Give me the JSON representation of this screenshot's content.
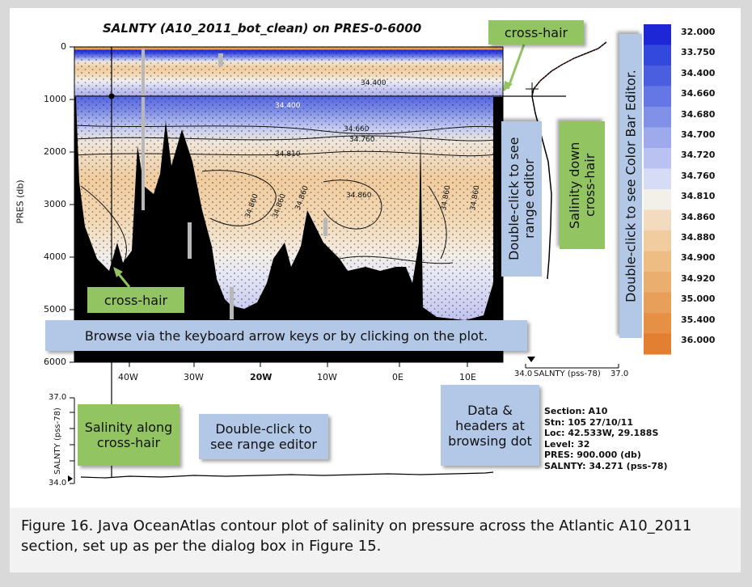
{
  "plot": {
    "title": "SALNTY (A10_2011_bot_clean) on PRES-0-6000",
    "y_axis_label": "PRES (db)",
    "y_ticks": [
      "0",
      "1000",
      "2000",
      "3000",
      "4000",
      "5000",
      "6000"
    ],
    "x_ticks": [
      "40W",
      "30W",
      "20W",
      "10W",
      "0E",
      "10E"
    ],
    "contour_labels": [
      "34.400",
      "34.400",
      "34.660",
      "34.760",
      "34.810",
      "34.860",
      "34.860",
      "34.860",
      "34.860",
      "34.860",
      "34.860"
    ]
  },
  "side_plot": {
    "x_min": "34.0",
    "axis_label": "SALNTY (pss-78)",
    "x_max": "37.0"
  },
  "bottom_plot": {
    "y_max": "37.0",
    "y_min": "34.0",
    "axis_label": "SALNTY (pss-78)"
  },
  "color_bar": {
    "labels": [
      "32.000",
      "33.750",
      "34.400",
      "34.660",
      "34.680",
      "34.700",
      "34.720",
      "34.760",
      "34.810",
      "34.860",
      "34.880",
      "34.900",
      "34.920",
      "35.000",
      "35.400",
      "36.000"
    ]
  },
  "callouts": {
    "crosshair_top": "cross-hair",
    "crosshair_left": "cross-hair",
    "range_editor_vertical": "Double-click to see range editor",
    "salinity_down": "Salinity down cross-hair",
    "color_bar_editor": "Double-click to see Color Bar Editor.",
    "browse": "Browse via the keyboard arrow keys or by clicking on the plot.",
    "salinity_along": "Salinity along cross-hair",
    "range_editor_bottom": "Double-click to see range editor",
    "data_headers": "Data & headers at browsing dot"
  },
  "info": {
    "section": "Section: A10",
    "station": "Stn: 105 27/10/11",
    "location": "Loc:  42.533W,  29.188S",
    "level": "Level: 32",
    "pressure": "PRES: 900.000 (db)",
    "salinity": "SALNTY:  34.271 (pss-78)"
  },
  "caption": "Figure 16. Java OceanAtlas contour plot of salinity on pressure across the Atlantic A10_2011 section, set up as per the dialog box in Figure 15.",
  "colors": {
    "deep_blue": "#2b3fd1",
    "orange": "#e39a52",
    "callout_green": "#92c561",
    "callout_blue": "#b3c8e6"
  }
}
